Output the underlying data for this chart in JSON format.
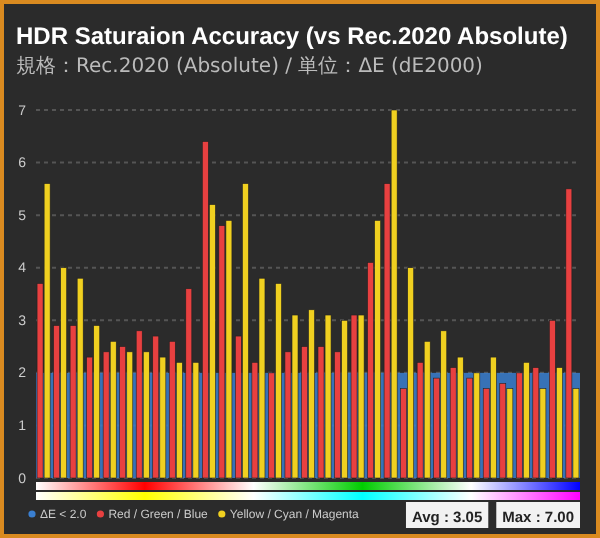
{
  "chart_data": {
    "type": "bar",
    "title": "HDR Saturaion Accuracy (vs Rec.2020 Absolute)",
    "subtitle": "規格：Rec.2020 (Absolute) / 単位：ΔE (dE2000)",
    "categories": [
      null,
      null,
      null,
      null,
      null,
      null,
      null,
      null,
      null,
      null,
      null,
      null,
      null,
      null,
      null,
      null,
      null,
      null,
      null,
      null,
      null,
      null,
      null,
      null,
      null,
      null,
      null,
      null,
      null,
      null,
      null,
      null,
      null
    ],
    "series": [
      {
        "name": "Red / Green / Blue",
        "color": "#e84040",
        "values": [
          3.7,
          2.9,
          2.9,
          2.3,
          2.4,
          2.5,
          2.8,
          2.7,
          2.6,
          3.6,
          6.4,
          4.8,
          2.7,
          2.2,
          2.0,
          2.4,
          2.5,
          2.5,
          2.4,
          3.1,
          4.1,
          5.6,
          1.7,
          2.2,
          1.9,
          2.1,
          1.9,
          1.7,
          1.8,
          2.0,
          2.1,
          3.0,
          5.5
        ]
      },
      {
        "name": "Yellow / Cyan / Magenta",
        "color": "#f0d020",
        "values": [
          5.6,
          4.0,
          3.8,
          2.9,
          2.6,
          2.4,
          2.4,
          2.3,
          2.2,
          2.2,
          5.2,
          4.9,
          5.6,
          3.8,
          3.7,
          3.1,
          3.2,
          3.1,
          3.0,
          3.1,
          4.9,
          7.0,
          4.0,
          2.6,
          2.8,
          2.3,
          2.0,
          2.3,
          1.7,
          2.2,
          1.7,
          2.1,
          1.7
        ]
      }
    ],
    "ylim": [
      0,
      7
    ],
    "yticks": [
      0,
      1,
      2,
      3,
      4,
      5,
      6,
      7
    ],
    "grid": "y",
    "legend": "bottom",
    "bands": [
      {
        "axis": "y",
        "from": 0,
        "to": 2,
        "label": "ΔE < 2.0",
        "color": "#3a7fd0"
      }
    ],
    "annotations": [
      "Avg : 3.05",
      "Max : 7.00"
    ]
  }
}
